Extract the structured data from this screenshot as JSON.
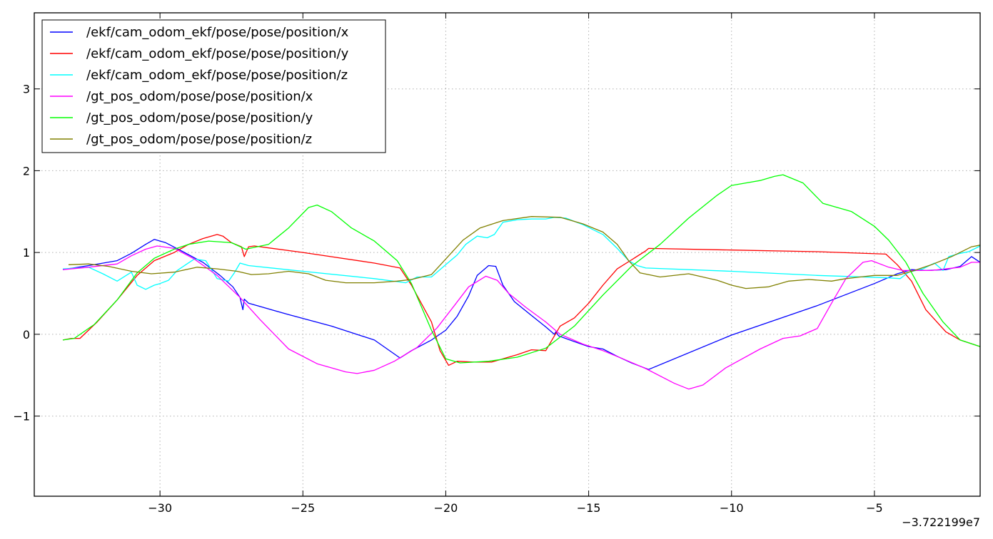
{
  "chart_data": {
    "type": "line",
    "title": "",
    "xlabel": "",
    "ylabel": "",
    "xlim": [
      -34.4,
      -1.3
    ],
    "ylim": [
      -1.98,
      3.93
    ],
    "x_ticks": [
      -30,
      -25,
      -20,
      -15,
      -10,
      -5
    ],
    "x_tick_labels": [
      "−30",
      "−25",
      "−20",
      "−15",
      "−10",
      "−5"
    ],
    "y_ticks": [
      -1,
      0,
      1,
      2,
      3
    ],
    "y_tick_labels": [
      "−1",
      "0",
      "1",
      "2",
      "3"
    ],
    "x_offset_label": "−3.722199e7",
    "grid": true,
    "legend_position": "top-left",
    "series": [
      {
        "name": "/ekf/cam_odom_ekf/pose/pose/position/x",
        "color": "#0000ff",
        "points": [
          [
            -33.4,
            0.79
          ],
          [
            -32.5,
            0.84
          ],
          [
            -31.5,
            0.9
          ],
          [
            -31,
            0.99
          ],
          [
            -30.5,
            1.1
          ],
          [
            -30.2,
            1.16
          ],
          [
            -29.8,
            1.12
          ],
          [
            -29.2,
            1.01
          ],
          [
            -28.5,
            0.88
          ],
          [
            -27.9,
            0.72
          ],
          [
            -27.45,
            0.58
          ],
          [
            -27.2,
            0.45
          ],
          [
            -27.1,
            0.3
          ],
          [
            -27.05,
            0.43
          ],
          [
            -26.9,
            0.38
          ],
          [
            -25.5,
            0.24
          ],
          [
            -24,
            0.1
          ],
          [
            -22.5,
            -0.07
          ],
          [
            -21.6,
            -0.29
          ],
          [
            -21.2,
            -0.2
          ],
          [
            -20.5,
            -0.07
          ],
          [
            -20,
            0.05
          ],
          [
            -19.6,
            0.22
          ],
          [
            -19.2,
            0.47
          ],
          [
            -18.9,
            0.72
          ],
          [
            -18.5,
            0.84
          ],
          [
            -18.25,
            0.83
          ],
          [
            -18,
            0.6
          ],
          [
            -17.6,
            0.4
          ],
          [
            -17,
            0.23
          ],
          [
            -16.5,
            0.09
          ],
          [
            -16.2,
            0.0
          ],
          [
            -16.15,
            0.03
          ],
          [
            -16.05,
            -0.02
          ],
          [
            -15.5,
            -0.09
          ],
          [
            -15,
            -0.15
          ],
          [
            -14.5,
            -0.18
          ],
          [
            -14,
            -0.27
          ],
          [
            -13.5,
            -0.35
          ],
          [
            -12.9,
            -0.43
          ],
          [
            -10,
            -0.01
          ],
          [
            -7,
            0.35
          ],
          [
            -5,
            0.62
          ],
          [
            -4.2,
            0.74
          ],
          [
            -3.7,
            0.79
          ],
          [
            -3.2,
            0.78
          ],
          [
            -2.5,
            0.79
          ],
          [
            -2,
            0.83
          ],
          [
            -1.6,
            0.95
          ],
          [
            -1.3,
            0.88
          ]
        ]
      },
      {
        "name": "/ekf/cam_odom_ekf/pose/pose/position/y",
        "color": "#ff0000",
        "points": [
          [
            -33.4,
            -0.07
          ],
          [
            -33.1,
            -0.05
          ],
          [
            -32.8,
            -0.05
          ],
          [
            -32.2,
            0.15
          ],
          [
            -31.5,
            0.42
          ],
          [
            -30.8,
            0.72
          ],
          [
            -30.2,
            0.9
          ],
          [
            -29.5,
            1.0
          ],
          [
            -29,
            1.1
          ],
          [
            -28.5,
            1.17
          ],
          [
            -28,
            1.22
          ],
          [
            -27.8,
            1.2
          ],
          [
            -27.5,
            1.12
          ],
          [
            -27.15,
            1.07
          ],
          [
            -27.05,
            0.95
          ],
          [
            -26.9,
            1.07
          ],
          [
            -26.7,
            1.08
          ],
          [
            -25,
            1.0
          ],
          [
            -22.5,
            0.87
          ],
          [
            -21.6,
            0.81
          ],
          [
            -21.2,
            0.6
          ],
          [
            -20.5,
            0.15
          ],
          [
            -20.2,
            -0.2
          ],
          [
            -19.9,
            -0.38
          ],
          [
            -19.6,
            -0.33
          ],
          [
            -19,
            -0.34
          ],
          [
            -18.4,
            -0.34
          ],
          [
            -17.5,
            -0.25
          ],
          [
            -17,
            -0.19
          ],
          [
            -16.5,
            -0.2
          ],
          [
            -16,
            0.1
          ],
          [
            -15.5,
            0.2
          ],
          [
            -15,
            0.38
          ],
          [
            -14.5,
            0.6
          ],
          [
            -14,
            0.8
          ],
          [
            -13.5,
            0.91
          ],
          [
            -13,
            1.02
          ],
          [
            -12.9,
            1.05
          ],
          [
            -10,
            1.03
          ],
          [
            -7,
            1.01
          ],
          [
            -4.6,
            0.98
          ],
          [
            -4.2,
            0.85
          ],
          [
            -3.7,
            0.65
          ],
          [
            -3.2,
            0.3
          ],
          [
            -2.5,
            0.03
          ],
          [
            -2,
            -0.07
          ],
          [
            -1.3,
            -0.15
          ]
        ]
      },
      {
        "name": "/ekf/cam_odom_ekf/pose/pose/position/z",
        "color": "#00ffff",
        "points": [
          [
            -33.4,
            0.8
          ],
          [
            -32.5,
            0.82
          ],
          [
            -32,
            0.74
          ],
          [
            -31.5,
            0.65
          ],
          [
            -31,
            0.76
          ],
          [
            -30.8,
            0.6
          ],
          [
            -30.5,
            0.55
          ],
          [
            -30.2,
            0.6
          ],
          [
            -30,
            0.62
          ],
          [
            -29.7,
            0.66
          ],
          [
            -29.4,
            0.78
          ],
          [
            -29.1,
            0.85
          ],
          [
            -28.8,
            0.92
          ],
          [
            -28.4,
            0.9
          ],
          [
            -28,
            0.68
          ],
          [
            -27.6,
            0.65
          ],
          [
            -27.4,
            0.75
          ],
          [
            -27.2,
            0.87
          ],
          [
            -26.9,
            0.84
          ],
          [
            -25,
            0.77
          ],
          [
            -22.5,
            0.68
          ],
          [
            -21.4,
            0.63
          ],
          [
            -21,
            0.7
          ],
          [
            -20.5,
            0.7
          ],
          [
            -20,
            0.85
          ],
          [
            -19.6,
            0.97
          ],
          [
            -19.3,
            1.1
          ],
          [
            -18.9,
            1.2
          ],
          [
            -18.55,
            1.18
          ],
          [
            -18.3,
            1.22
          ],
          [
            -18,
            1.37
          ],
          [
            -17.5,
            1.4
          ],
          [
            -17,
            1.41
          ],
          [
            -16.5,
            1.41
          ],
          [
            -16.2,
            1.43
          ],
          [
            -15.8,
            1.42
          ],
          [
            -15.2,
            1.34
          ],
          [
            -14.5,
            1.22
          ],
          [
            -14,
            1.05
          ],
          [
            -13.6,
            0.9
          ],
          [
            -13.3,
            0.84
          ],
          [
            -13,
            0.81
          ],
          [
            -10,
            0.77
          ],
          [
            -7,
            0.72
          ],
          [
            -4.5,
            0.69
          ],
          [
            -4.1,
            0.68
          ],
          [
            -3.8,
            0.76
          ],
          [
            -3.3,
            0.8
          ],
          [
            -2.9,
            0.87
          ],
          [
            -2.6,
            0.78
          ],
          [
            -2.4,
            0.95
          ],
          [
            -2,
            0.99
          ],
          [
            -1.7,
            1.01
          ],
          [
            -1.3,
            1.08
          ]
        ]
      },
      {
        "name": "/gt_pos_odom/pose/pose/position/x",
        "color": "#ff00ff",
        "points": [
          [
            -33.4,
            0.79
          ],
          [
            -32.5,
            0.82
          ],
          [
            -31.5,
            0.86
          ],
          [
            -31,
            0.96
          ],
          [
            -30.5,
            1.04
          ],
          [
            -30.1,
            1.08
          ],
          [
            -29.5,
            1.05
          ],
          [
            -28.8,
            0.92
          ],
          [
            -28,
            0.72
          ],
          [
            -27.2,
            0.45
          ],
          [
            -26.5,
            0.18
          ],
          [
            -25.5,
            -0.18
          ],
          [
            -24.5,
            -0.36
          ],
          [
            -23.5,
            -0.46
          ],
          [
            -23.1,
            -0.48
          ],
          [
            -22.5,
            -0.44
          ],
          [
            -21.8,
            -0.33
          ],
          [
            -21,
            -0.16
          ],
          [
            -20.3,
            0.08
          ],
          [
            -19.7,
            0.35
          ],
          [
            -19.2,
            0.58
          ],
          [
            -18.6,
            0.71
          ],
          [
            -18.2,
            0.66
          ],
          [
            -17.8,
            0.5
          ],
          [
            -17.2,
            0.33
          ],
          [
            -16.5,
            0.15
          ],
          [
            -16,
            0.0
          ],
          [
            -15.2,
            -0.12
          ],
          [
            -14.5,
            -0.2
          ],
          [
            -13.8,
            -0.3
          ],
          [
            -13,
            -0.42
          ],
          [
            -12,
            -0.6
          ],
          [
            -11.5,
            -0.67
          ],
          [
            -11,
            -0.62
          ],
          [
            -10.2,
            -0.41
          ],
          [
            -9,
            -0.18
          ],
          [
            -8.2,
            -0.05
          ],
          [
            -7.6,
            -0.02
          ],
          [
            -7,
            0.07
          ],
          [
            -6.5,
            0.38
          ],
          [
            -6,
            0.68
          ],
          [
            -5.4,
            0.88
          ],
          [
            -5.1,
            0.9
          ],
          [
            -4.5,
            0.82
          ],
          [
            -4,
            0.78
          ],
          [
            -3.5,
            0.78
          ],
          [
            -3,
            0.78
          ],
          [
            -2,
            0.82
          ],
          [
            -1.6,
            0.88
          ],
          [
            -1.3,
            0.88
          ]
        ]
      },
      {
        "name": "/gt_pos_odom/pose/pose/position/y",
        "color": "#00ff00",
        "points": [
          [
            -33.4,
            -0.07
          ],
          [
            -33,
            -0.05
          ],
          [
            -32.3,
            0.12
          ],
          [
            -31.5,
            0.42
          ],
          [
            -30.8,
            0.75
          ],
          [
            -30.2,
            0.93
          ],
          [
            -29.5,
            1.04
          ],
          [
            -29,
            1.1
          ],
          [
            -28.3,
            1.14
          ],
          [
            -27.5,
            1.12
          ],
          [
            -27,
            1.04
          ],
          [
            -26.2,
            1.1
          ],
          [
            -25.5,
            1.3
          ],
          [
            -24.8,
            1.55
          ],
          [
            -24.5,
            1.58
          ],
          [
            -24,
            1.5
          ],
          [
            -23.3,
            1.3
          ],
          [
            -22.5,
            1.14
          ],
          [
            -21.7,
            0.9
          ],
          [
            -21.2,
            0.62
          ],
          [
            -20.5,
            0.05
          ],
          [
            -20,
            -0.3
          ],
          [
            -19.5,
            -0.35
          ],
          [
            -18.5,
            -0.33
          ],
          [
            -17.5,
            -0.28
          ],
          [
            -16.5,
            -0.17
          ],
          [
            -15.5,
            0.1
          ],
          [
            -14.5,
            0.48
          ],
          [
            -13.5,
            0.83
          ],
          [
            -12.5,
            1.1
          ],
          [
            -11.5,
            1.42
          ],
          [
            -10.5,
            1.7
          ],
          [
            -10,
            1.82
          ],
          [
            -9,
            1.88
          ],
          [
            -8.5,
            1.93
          ],
          [
            -8.2,
            1.95
          ],
          [
            -7.5,
            1.85
          ],
          [
            -6.8,
            1.6
          ],
          [
            -5.8,
            1.5
          ],
          [
            -5,
            1.32
          ],
          [
            -4.5,
            1.15
          ],
          [
            -3.9,
            0.88
          ],
          [
            -3.3,
            0.5
          ],
          [
            -2.6,
            0.15
          ],
          [
            -2,
            -0.07
          ],
          [
            -1.3,
            -0.15
          ]
        ]
      },
      {
        "name": "/gt_pos_odom/pose/pose/position/z",
        "color": "#808000",
        "points": [
          [
            -33.2,
            0.85
          ],
          [
            -32.5,
            0.86
          ],
          [
            -31.8,
            0.83
          ],
          [
            -31,
            0.77
          ],
          [
            -30.3,
            0.74
          ],
          [
            -29.5,
            0.76
          ],
          [
            -28.7,
            0.82
          ],
          [
            -28,
            0.8
          ],
          [
            -27.3,
            0.77
          ],
          [
            -26.8,
            0.73
          ],
          [
            -26.2,
            0.74
          ],
          [
            -25.5,
            0.77
          ],
          [
            -24.8,
            0.74
          ],
          [
            -24.2,
            0.66
          ],
          [
            -23.5,
            0.63
          ],
          [
            -22.5,
            0.63
          ],
          [
            -21.7,
            0.65
          ],
          [
            -21.2,
            0.67
          ],
          [
            -20.5,
            0.73
          ],
          [
            -20,
            0.92
          ],
          [
            -19.4,
            1.15
          ],
          [
            -18.8,
            1.3
          ],
          [
            -18,
            1.39
          ],
          [
            -17,
            1.44
          ],
          [
            -16,
            1.43
          ],
          [
            -15.2,
            1.35
          ],
          [
            -14.5,
            1.25
          ],
          [
            -14,
            1.1
          ],
          [
            -13.6,
            0.9
          ],
          [
            -13.2,
            0.75
          ],
          [
            -12.5,
            0.7
          ],
          [
            -11.5,
            0.74
          ],
          [
            -10.5,
            0.66
          ],
          [
            -10,
            0.6
          ],
          [
            -9.5,
            0.56
          ],
          [
            -8.7,
            0.58
          ],
          [
            -8,
            0.65
          ],
          [
            -7.3,
            0.67
          ],
          [
            -6.5,
            0.65
          ],
          [
            -6,
            0.68
          ],
          [
            -5.5,
            0.7
          ],
          [
            -5,
            0.72
          ],
          [
            -4.2,
            0.72
          ],
          [
            -3.6,
            0.78
          ],
          [
            -3,
            0.85
          ],
          [
            -2.3,
            0.95
          ],
          [
            -1.6,
            1.07
          ],
          [
            -1.3,
            1.09
          ]
        ]
      }
    ]
  }
}
